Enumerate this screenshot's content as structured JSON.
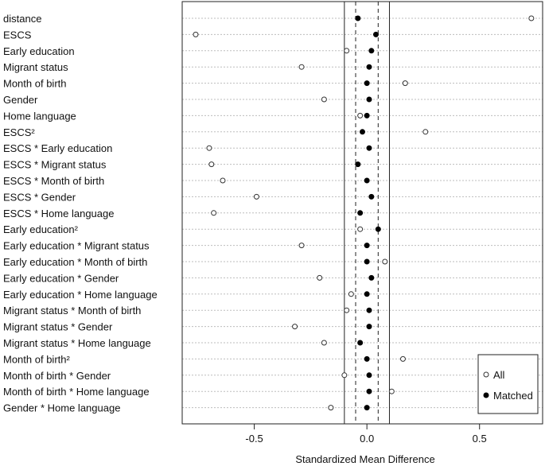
{
  "chart_data": {
    "type": "scatter",
    "title": "",
    "xlabel": "Standardized Mean Difference",
    "ylabel": "",
    "xlim": [
      -0.82,
      0.78
    ],
    "xticks": [
      -0.5,
      0.0,
      0.5
    ],
    "tick_labels": [
      "-0.5",
      "0.0",
      "0.5"
    ],
    "grid": "horizontal-dotted",
    "reference_lines": {
      "solid": [
        -0.1,
        0.1
      ],
      "dashed": [
        -0.05,
        0.05
      ]
    },
    "legend": {
      "position": "bottom-right",
      "entries": [
        "All",
        "Matched"
      ]
    },
    "categories": [
      "distance",
      "ESCS",
      "Early education",
      "Migrant status",
      "Month of birth",
      "Gender",
      "Home language",
      "ESCS²",
      "ESCS * Early education",
      "ESCS * Migrant status",
      "ESCS * Month of birth",
      "ESCS * Gender",
      "ESCS * Home language",
      "Early education²",
      "Early education * Migrant status",
      "Early education * Month of birth",
      "Early education * Gender",
      "Early education * Home language",
      "Migrant status * Month of birth",
      "Migrant status * Gender",
      "Migrant status * Home language",
      "Month of birth²",
      "Month of birth * Gender",
      "Month of birth * Home language",
      "Gender * Home language"
    ],
    "series": [
      {
        "name": "All",
        "marker": "open-circle",
        "values": [
          0.73,
          -0.76,
          -0.09,
          -0.29,
          0.17,
          -0.19,
          -0.03,
          0.26,
          -0.7,
          -0.69,
          -0.64,
          -0.49,
          -0.68,
          -0.03,
          -0.29,
          0.08,
          -0.21,
          -0.07,
          -0.09,
          -0.32,
          -0.19,
          0.16,
          -0.1,
          0.11,
          -0.16
        ]
      },
      {
        "name": "Matched",
        "marker": "filled-circle",
        "values": [
          -0.04,
          0.04,
          0.02,
          0.01,
          0.0,
          0.01,
          0.0,
          -0.02,
          0.01,
          -0.04,
          0.0,
          0.02,
          -0.03,
          0.05,
          0.0,
          0.0,
          0.02,
          0.0,
          0.01,
          0.01,
          -0.03,
          0.0,
          0.01,
          0.01,
          0.0
        ]
      }
    ]
  }
}
